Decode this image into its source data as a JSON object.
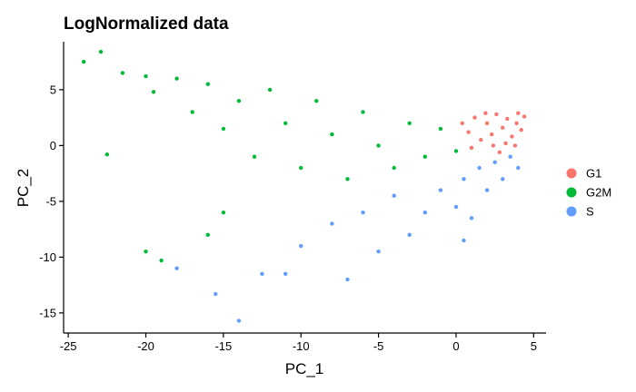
{
  "chart_data": {
    "type": "scatter",
    "title": "LogNormalized data",
    "xlabel": "PC_1",
    "ylabel": "PC_2",
    "xlim": [
      -25.3,
      5.8
    ],
    "ylim": [
      -16.8,
      9.3
    ],
    "xticks": [
      -25,
      -20,
      -15,
      -10,
      -5,
      0,
      5
    ],
    "yticks": [
      -15,
      -10,
      -5,
      0,
      5
    ],
    "grid": false,
    "legend_position": "right",
    "series": [
      {
        "name": "G1",
        "color": "#F8766D",
        "points": [
          [
            0.8,
            1.2
          ],
          [
            1.2,
            2.5
          ],
          [
            1.6,
            0.5
          ],
          [
            2.0,
            2.0
          ],
          [
            2.3,
            1.0
          ],
          [
            2.6,
            2.8
          ],
          [
            3.0,
            1.6
          ],
          [
            3.3,
            2.4
          ],
          [
            3.6,
            0.8
          ],
          [
            3.9,
            2.0
          ],
          [
            4.2,
            1.4
          ],
          [
            4.4,
            2.6
          ],
          [
            1.0,
            -0.2
          ],
          [
            2.8,
            -0.6
          ],
          [
            3.8,
            0.0
          ],
          [
            0.4,
            2.0
          ],
          [
            1.9,
            2.9
          ],
          [
            3.2,
            0.2
          ],
          [
            4.0,
            2.9
          ],
          [
            2.4,
            0.0
          ]
        ]
      },
      {
        "name": "G2M",
        "color": "#00BA38",
        "points": [
          [
            -24.0,
            7.5
          ],
          [
            -22.9,
            8.4
          ],
          [
            -21.5,
            6.5
          ],
          [
            -20.0,
            6.2
          ],
          [
            -19.5,
            4.8
          ],
          [
            -18.0,
            6.0
          ],
          [
            -17.0,
            3.0
          ],
          [
            -16.0,
            5.5
          ],
          [
            -15.0,
            1.5
          ],
          [
            -14.0,
            4.0
          ],
          [
            -13.0,
            -1.0
          ],
          [
            -12.0,
            5.0
          ],
          [
            -11.0,
            2.0
          ],
          [
            -10.0,
            -2.0
          ],
          [
            -9.0,
            4.0
          ],
          [
            -8.0,
            1.0
          ],
          [
            -7.0,
            -3.0
          ],
          [
            -6.0,
            3.0
          ],
          [
            -5.0,
            0.0
          ],
          [
            -4.0,
            -2.0
          ],
          [
            -3.0,
            2.0
          ],
          [
            -2.0,
            -1.0
          ],
          [
            -1.0,
            1.5
          ],
          [
            0.0,
            -0.5
          ],
          [
            -20.0,
            -9.5
          ],
          [
            -19.0,
            -10.3
          ],
          [
            -16.0,
            -8.0
          ],
          [
            -15.0,
            -6.0
          ],
          [
            -22.5,
            -0.8
          ]
        ]
      },
      {
        "name": "S",
        "color": "#619CFF",
        "points": [
          [
            -18.0,
            -11.0
          ],
          [
            -15.5,
            -13.3
          ],
          [
            -14.0,
            -15.7
          ],
          [
            -12.5,
            -11.5
          ],
          [
            -10.0,
            -9.0
          ],
          [
            -8.0,
            -7.0
          ],
          [
            -6.0,
            -6.0
          ],
          [
            -4.0,
            -4.5
          ],
          [
            -3.0,
            -8.0
          ],
          [
            -2.0,
            -6.0
          ],
          [
            -1.0,
            -4.0
          ],
          [
            0.0,
            -5.5
          ],
          [
            0.5,
            -3.0
          ],
          [
            1.0,
            -6.5
          ],
          [
            1.5,
            -2.0
          ],
          [
            2.0,
            -4.0
          ],
          [
            2.5,
            -1.5
          ],
          [
            3.0,
            -3.0
          ],
          [
            3.5,
            -1.0
          ],
          [
            4.0,
            -2.0
          ],
          [
            0.5,
            -8.5
          ],
          [
            -5.0,
            -9.5
          ],
          [
            -11.0,
            -11.5
          ],
          [
            -7.0,
            -12.0
          ]
        ]
      }
    ]
  }
}
